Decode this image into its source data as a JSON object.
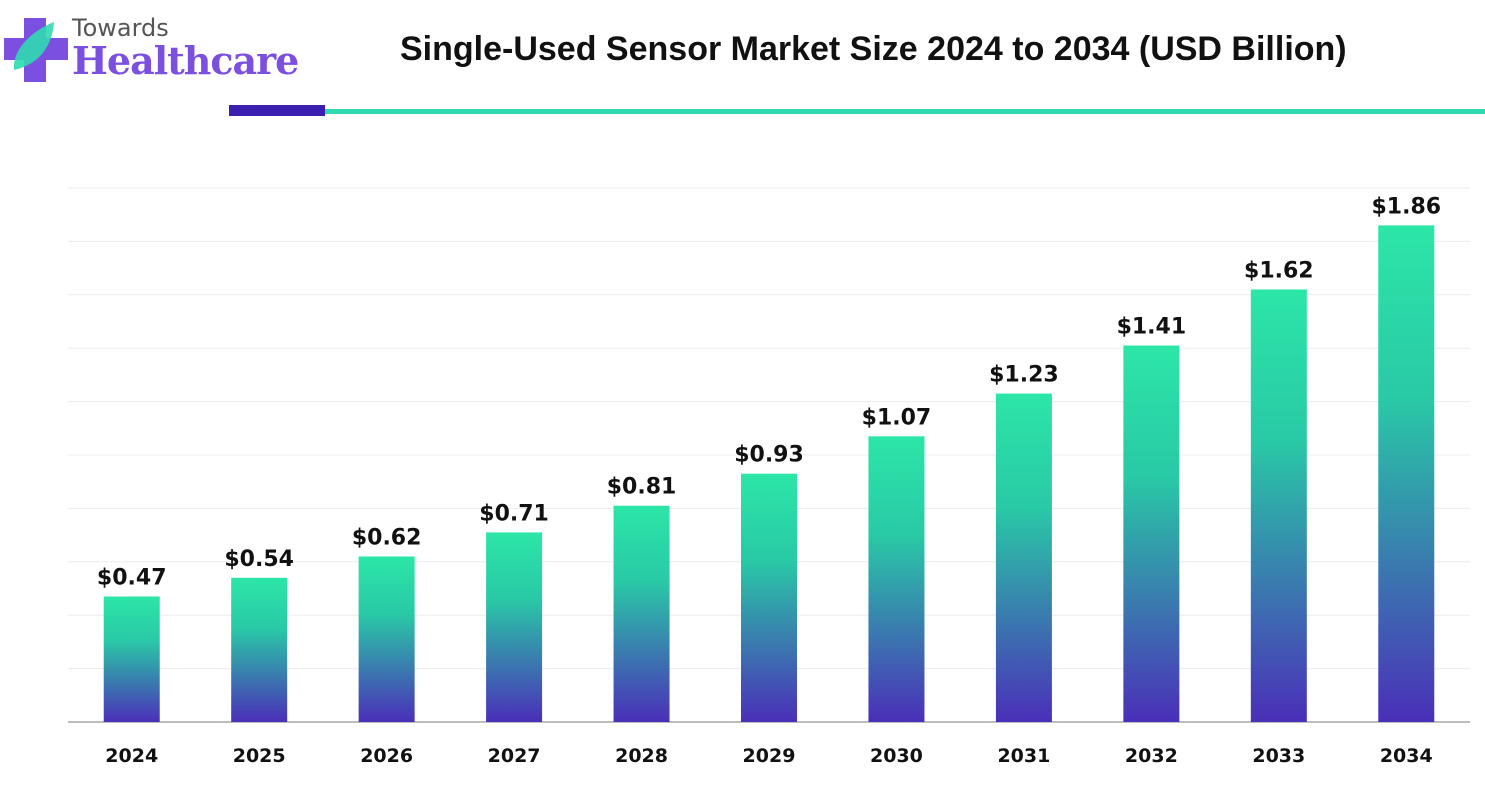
{
  "logo": {
    "line1": "Towards",
    "line2": "Healthcare"
  },
  "chart_data": {
    "type": "bar",
    "title": "Single-Used Sensor Market Size 2024 to 2034 (USD Billion)",
    "categories": [
      "2024",
      "2025",
      "2026",
      "2027",
      "2028",
      "2029",
      "2030",
      "2031",
      "2032",
      "2033",
      "2034"
    ],
    "values": [
      0.47,
      0.54,
      0.62,
      0.71,
      0.81,
      0.93,
      1.07,
      1.23,
      1.41,
      1.62,
      1.86
    ],
    "data_labels": [
      "$0.47",
      "$0.54",
      "$0.62",
      "$0.71",
      "$0.81",
      "$0.93",
      "$1.07",
      "$1.23",
      "$1.41",
      "$1.62",
      "$1.86"
    ],
    "xlabel": "",
    "ylabel": "",
    "ylim": [
      0,
      2
    ],
    "grid": true,
    "y_axis_labels_shown": false,
    "colors": {
      "bar_top": "#2ce6a8",
      "bar_bottom": "#4a2fb8",
      "grid": "#ececec",
      "axis": "#bdbdbd"
    }
  }
}
